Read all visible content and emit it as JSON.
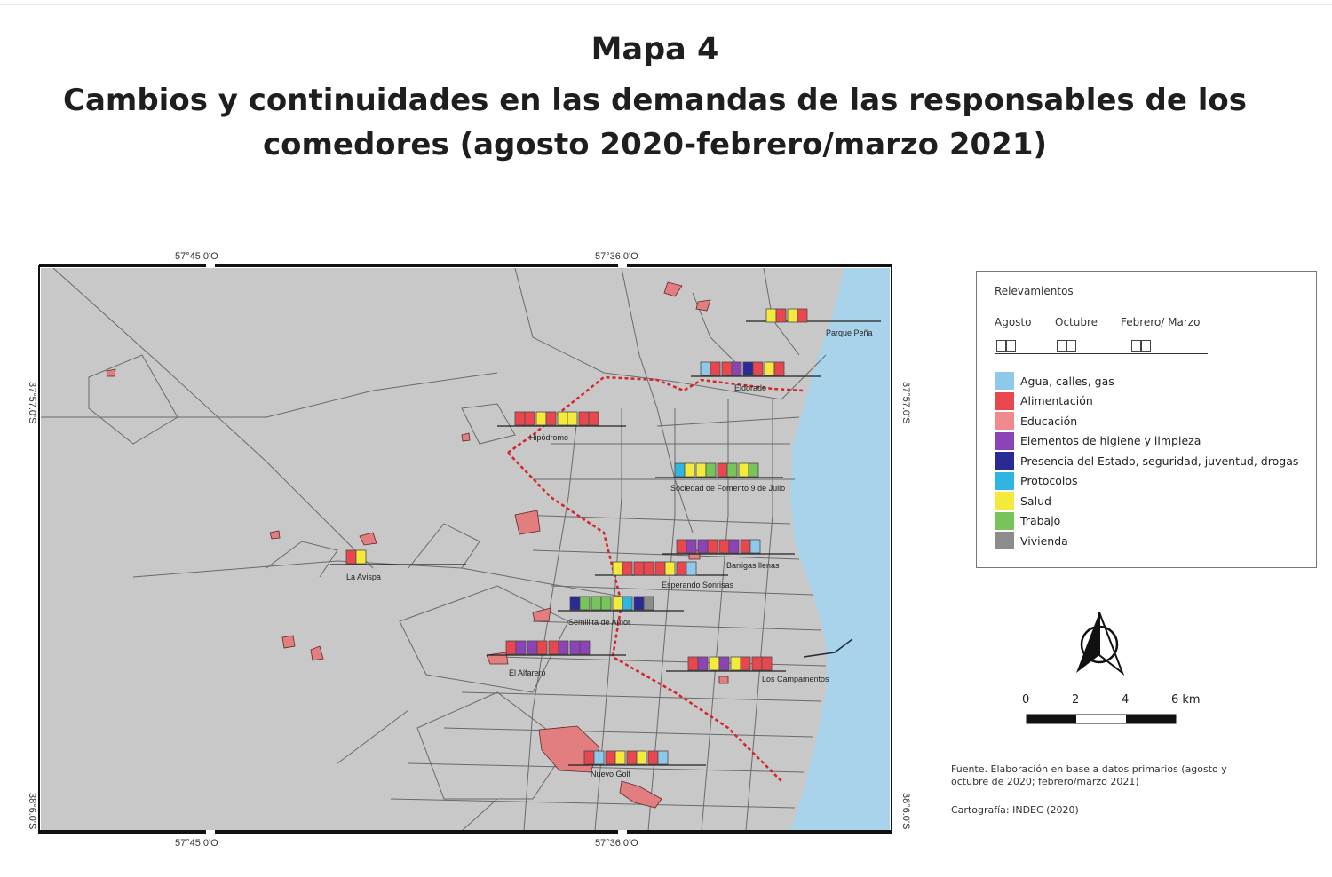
{
  "title": {
    "line1": "Mapa 4",
    "line2": "Cambios y continuidades en las demandas de las responsables de los",
    "line3": "comedores (agosto 2020-febrero/marzo 2021)"
  },
  "coordinates": {
    "top_left": "57°45.0'O",
    "top_right": "57°36.0'O",
    "bottom_left": "57°45.0'O",
    "bottom_right": "57°36.0'O",
    "left_upper": "37°57.0'S",
    "left_lower": "38°6.0'S",
    "right_upper": "37°57.0'S",
    "right_lower": "38°6.0'S"
  },
  "colors": {
    "agua": "#8ec9ea",
    "alimentacion": "#e8474f",
    "educacion": "#f08a8e",
    "higiene": "#8b43b6",
    "estado": "#2a2a94",
    "protocolos": "#2fb6e0",
    "salud": "#f4ea3c",
    "trabajo": "#76c45a",
    "vivienda": "#8c8c8c",
    "land": "#c8c8c8",
    "sea": "#a8d3ea",
    "parcel": "#e27d80",
    "boundary": "#d3262c"
  },
  "legend": {
    "title": "Relevamientos",
    "surveys": [
      "Agosto",
      "Octubre",
      "Febrero/ Marzo"
    ],
    "items": [
      {
        "key": "agua",
        "label": "Agua, calles, gas"
      },
      {
        "key": "alimentacion",
        "label": "Alimentación"
      },
      {
        "key": "educacion",
        "label": "Educación"
      },
      {
        "key": "higiene",
        "label": "Elementos de higiene y limpieza"
      },
      {
        "key": "estado",
        "label": "Presencia del Estado, seguridad, juventud, drogas"
      },
      {
        "key": "protocolos",
        "label": "Protocolos"
      },
      {
        "key": "salud",
        "label": "Salud"
      },
      {
        "key": "trabajo",
        "label": "Trabajo"
      },
      {
        "key": "vivienda",
        "label": "Vivienda"
      }
    ]
  },
  "comedores": [
    {
      "name": "Parque Peña",
      "demands": [
        [
          "salud",
          "alimentacion"
        ],
        [
          "salud",
          "alimentacion"
        ]
      ]
    },
    {
      "name": "Eldorado",
      "demands": [
        [
          "agua",
          "alimentacion"
        ],
        [
          "alimentacion",
          "higiene"
        ],
        [
          "estado",
          "alimentacion"
        ],
        [
          "salud",
          "alimentacion"
        ]
      ]
    },
    {
      "name": "Hipódromo",
      "demands": [
        [
          "alimentacion",
          "alimentacion"
        ],
        [
          "salud",
          "alimentacion"
        ],
        [
          "salud",
          "salud"
        ],
        [
          "alimentacion",
          "alimentacion"
        ]
      ]
    },
    {
      "name": "Sociedad de Fomento 9 de Julio",
      "demands": [
        [
          "protocolos",
          "salud"
        ],
        [
          "salud",
          "trabajo"
        ],
        [
          "alimentacion",
          "trabajo"
        ],
        [
          "salud",
          "trabajo"
        ]
      ]
    },
    {
      "name": "La Avispa",
      "demands": [
        [
          "alimentacion",
          "salud"
        ]
      ]
    },
    {
      "name": "Barrigas llenas",
      "demands": [
        [
          "alimentacion",
          "higiene"
        ],
        [
          "higiene",
          "alimentacion"
        ],
        [
          "alimentacion",
          "higiene"
        ],
        [
          "alimentacion",
          "agua"
        ]
      ]
    },
    {
      "name": "Esperando Sonrisas",
      "demands": [
        [
          "salud",
          "alimentacion"
        ],
        [
          "alimentacion",
          "alimentacion"
        ],
        [
          "alimentacion",
          "salud"
        ],
        [
          "alimentacion",
          "agua"
        ]
      ]
    },
    {
      "name": "Semillita de Amor",
      "demands": [
        [
          "estado",
          "trabajo"
        ],
        [
          "trabajo",
          "trabajo"
        ],
        [
          "salud",
          "protocolos"
        ],
        [
          "estado",
          "vivienda"
        ]
      ]
    },
    {
      "name": "El Alfarero",
      "demands": [
        [
          "alimentacion",
          "higiene"
        ],
        [
          "higiene",
          "alimentacion"
        ],
        [
          "alimentacion",
          "higiene"
        ],
        [
          "higiene",
          "higiene"
        ]
      ]
    },
    {
      "name": "Los Campamentos",
      "demands": [
        [
          "alimentacion",
          "higiene"
        ],
        [
          "salud",
          "higiene"
        ],
        [
          "salud",
          "alimentacion"
        ],
        [
          "alimentacion",
          "alimentacion"
        ]
      ]
    },
    {
      "name": "Nuevo Golf",
      "demands": [
        [
          "alimentacion",
          "agua"
        ],
        [
          "alimentacion",
          "salud"
        ],
        [
          "alimentacion",
          "salud"
        ],
        [
          "alimentacion",
          "agua"
        ]
      ]
    }
  ],
  "scale": {
    "ticks": [
      "0",
      "2",
      "4",
      "6 km"
    ]
  },
  "credits": {
    "fuente_line1": "Fuente. Elaboración en base a datos primarios (agosto y",
    "fuente_line2": "octubre de 2020; febrero/marzo 2021)",
    "cartografia": "Cartografía: INDEC (2020)"
  }
}
